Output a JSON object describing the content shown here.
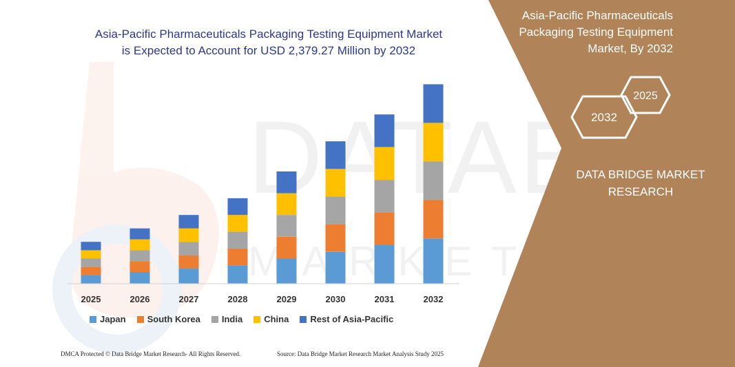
{
  "chart_data": {
    "type": "bar",
    "stacked": true,
    "title_lines": [
      "Asia-Pacific Pharmaceuticals Packaging Testing Equipment Market",
      "is Expected to Account for USD 2,379.27 Million by 2032"
    ],
    "categories": [
      "2025",
      "2026",
      "2027",
      "2028",
      "2029",
      "2030",
      "2031",
      "2032"
    ],
    "series": [
      {
        "name": "Japan",
        "color": "#5b9bd5",
        "values": [
          1.0,
          1.4,
          1.8,
          2.2,
          3.0,
          3.8,
          4.6,
          5.4
        ]
      },
      {
        "name": "South Korea",
        "color": "#ed7d31",
        "values": [
          1.0,
          1.3,
          1.6,
          2.0,
          2.6,
          3.3,
          3.9,
          4.6
        ]
      },
      {
        "name": "India",
        "color": "#a5a5a5",
        "values": [
          1.0,
          1.3,
          1.6,
          2.0,
          2.6,
          3.3,
          3.9,
          4.6
        ]
      },
      {
        "name": "China",
        "color": "#ffc000",
        "values": [
          1.0,
          1.3,
          1.6,
          2.0,
          2.6,
          3.3,
          3.9,
          4.6
        ]
      },
      {
        "name": "Rest of Asia-Pacific",
        "color": "#4472c4",
        "values": [
          1.0,
          1.3,
          1.6,
          2.0,
          2.6,
          3.3,
          3.9,
          4.6
        ]
      }
    ],
    "ylim": [
      0,
      24
    ],
    "grid": false,
    "legend_position": "bottom"
  },
  "side_panel": {
    "title_lines": [
      "Asia-Pacific Pharmaceuticals",
      "Packaging Testing Equipment",
      "Market, By 2032"
    ],
    "badge_large": "2032",
    "badge_small": "2025",
    "brand_lines": [
      "DATA BRIDGE MARKET",
      "RESEARCH"
    ],
    "background_color": "#b08358"
  },
  "watermark": {
    "text": "DATABRIDGE",
    "subtext": "MARKET RESEARCH"
  },
  "footer": {
    "copyright": "DMCA Protected © Data Bridge Market Research-  All Rights Reserved.",
    "source": "Source: Data Bridge Market Research  Market Analysis Study 2025"
  }
}
